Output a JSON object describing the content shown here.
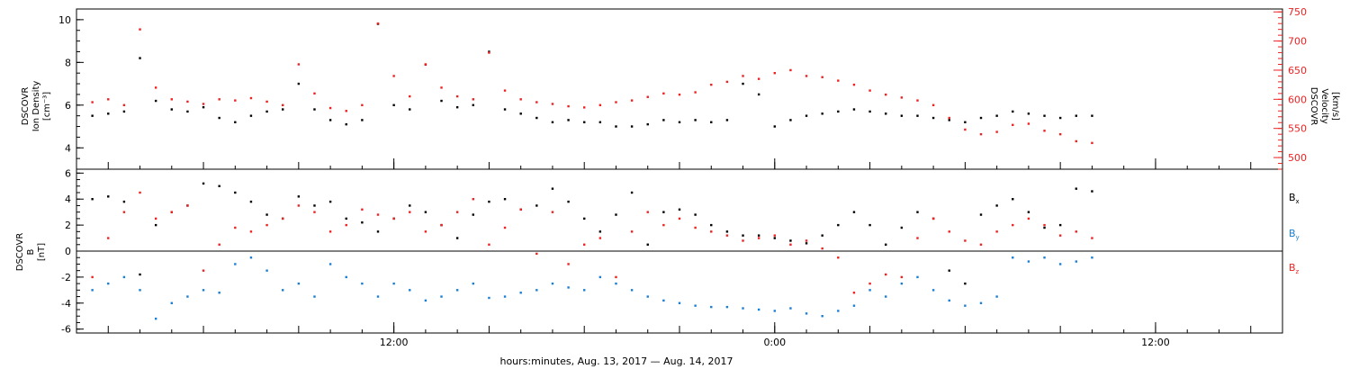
{
  "chart_data": [
    {
      "type": "scatter",
      "panel": "plasma",
      "ylabel_left": [
        "DSCOVR",
        "Ion Density",
        "[cm⁻³]"
      ],
      "ylabel_right": [
        "DSCOVR",
        "Velocity",
        "[km/s]"
      ],
      "ylim_left": [
        3,
        10.5
      ],
      "yticks_left": [
        "4",
        "6",
        "8",
        "10"
      ],
      "ylim_right": [
        480,
        755
      ],
      "yticks_right": [
        "500",
        "550",
        "600",
        "650",
        "700",
        "750"
      ],
      "colors": {
        "density": "#000000",
        "velocity": "#ee2222"
      },
      "series": [
        {
          "axis": "left",
          "color": "#000000",
          "x": [
            0.0,
            0.5,
            1.0,
            1.5,
            2.0,
            2.5,
            3.0,
            3.5,
            4.0,
            4.5,
            5.0,
            5.5,
            6.0,
            6.5,
            7.0,
            7.5,
            8.0,
            8.5,
            9.0,
            9.5,
            10.0,
            10.5,
            11.0,
            11.5,
            12.0,
            12.5,
            13.0,
            13.5,
            14.0,
            14.5,
            15.0,
            15.5,
            16.0,
            16.5,
            17.0,
            17.5,
            18.0,
            18.5,
            19.0,
            19.5,
            20.0,
            20.5,
            21.0,
            21.5,
            22.0,
            22.5,
            23.0,
            23.5,
            24.0,
            24.5,
            25.0,
            25.5,
            26.0,
            26.5,
            27.0,
            27.5,
            28.0,
            28.5,
            29.0,
            29.5,
            30.0,
            30.5,
            31.0,
            31.5
          ],
          "y": [
            5.5,
            5.6,
            5.7,
            8.2,
            6.2,
            5.8,
            5.7,
            5.9,
            5.4,
            5.2,
            5.5,
            5.7,
            5.8,
            7.0,
            5.8,
            5.3,
            5.1,
            5.3,
            9.8,
            6.0,
            5.8,
            7.9,
            6.2,
            5.9,
            6.0,
            8.5,
            5.8,
            5.6,
            5.4,
            5.2,
            5.3,
            5.2,
            5.2,
            5.0,
            5.0,
            5.1,
            5.3,
            5.2,
            5.3,
            5.2,
            5.3,
            7.0,
            6.5,
            5.0,
            5.3,
            5.5,
            5.6,
            5.7,
            5.8,
            5.7,
            5.6,
            5.5,
            5.5,
            5.4,
            5.3,
            5.2,
            5.4,
            5.5,
            5.7,
            5.6,
            5.5,
            5.4,
            5.5,
            5.5
          ]
        },
        {
          "axis": "right",
          "color": "#ee2222",
          "x": [
            0.0,
            0.5,
            1.0,
            1.5,
            2.0,
            2.5,
            3.0,
            3.5,
            4.0,
            4.5,
            5.0,
            5.5,
            6.0,
            6.5,
            7.0,
            7.5,
            8.0,
            8.5,
            9.0,
            9.5,
            10.0,
            10.5,
            11.0,
            11.5,
            12.0,
            12.5,
            13.0,
            13.5,
            14.0,
            14.5,
            15.0,
            15.5,
            16.0,
            16.5,
            17.0,
            17.5,
            18.0,
            18.5,
            19.0,
            19.5,
            20.0,
            20.5,
            21.0,
            21.5,
            22.0,
            22.5,
            23.0,
            23.5,
            24.0,
            24.5,
            25.0,
            25.5,
            26.0,
            26.5,
            27.0,
            27.5,
            28.0,
            28.5,
            29.0,
            29.5,
            30.0,
            30.5,
            31.0,
            31.5
          ],
          "y": [
            595,
            600,
            590,
            720,
            620,
            600,
            596,
            592,
            600,
            598,
            602,
            596,
            590,
            660,
            610,
            585,
            580,
            590,
            730,
            640,
            605,
            660,
            620,
            605,
            600,
            680,
            615,
            600,
            595,
            592,
            588,
            586,
            590,
            595,
            598,
            604,
            610,
            608,
            612,
            625,
            630,
            640,
            635,
            645,
            650,
            640,
            638,
            632,
            625,
            615,
            608,
            603,
            598,
            590,
            568,
            548,
            540,
            544,
            556,
            558,
            546,
            540,
            528,
            525
          ]
        }
      ]
    },
    {
      "type": "scatter",
      "panel": "magnetic-field",
      "ylabel": [
        "DSCOVR",
        "B",
        "[nT]"
      ],
      "ylim": [
        -6.3,
        6.3
      ],
      "yticks": [
        "-6",
        "-4",
        "-2",
        "0",
        "2",
        "4",
        "6"
      ],
      "legend": [
        {
          "label": "B",
          "sub": "x",
          "color": "#000000"
        },
        {
          "label": "B",
          "sub": "y",
          "color": "#1a7fd4"
        },
        {
          "label": "B",
          "sub": "z",
          "color": "#ee2222"
        }
      ],
      "series": [
        {
          "name": "Bx",
          "color": "#000000",
          "x": [
            0.0,
            0.5,
            1.0,
            1.5,
            2.0,
            2.5,
            3.0,
            3.5,
            4.0,
            4.5,
            5.0,
            5.5,
            6.0,
            6.5,
            7.0,
            7.5,
            8.0,
            8.5,
            9.0,
            9.5,
            10.0,
            10.5,
            11.0,
            11.5,
            12.0,
            12.5,
            13.0,
            13.5,
            14.0,
            14.5,
            15.0,
            15.5,
            16.0,
            16.5,
            17.0,
            17.5,
            18.0,
            18.5,
            19.0,
            19.5,
            20.0,
            20.5,
            21.0,
            21.5,
            22.0,
            22.5,
            23.0,
            23.5,
            24.0,
            24.5,
            25.0,
            25.5,
            26.0,
            26.5,
            27.0,
            27.5,
            28.0,
            28.5,
            29.0,
            29.5,
            30.0,
            30.5,
            31.0,
            31.5
          ],
          "y": [
            4.0,
            4.2,
            3.8,
            -1.8,
            2.0,
            3.0,
            3.5,
            5.2,
            5.0,
            4.5,
            3.8,
            2.8,
            2.5,
            4.2,
            3.5,
            3.8,
            2.5,
            2.2,
            1.5,
            2.5,
            3.5,
            3.0,
            2.0,
            1.0,
            2.8,
            3.8,
            4.0,
            3.2,
            3.5,
            4.8,
            3.8,
            2.5,
            1.5,
            2.8,
            4.5,
            0.5,
            3.0,
            3.2,
            2.8,
            2.0,
            1.5,
            1.2,
            1.2,
            1.0,
            0.8,
            0.6,
            1.2,
            2.0,
            3.0,
            2.0,
            0.5,
            1.8,
            3.0,
            2.5,
            -1.5,
            -2.5,
            2.8,
            3.5,
            4.0,
            3.0,
            1.8,
            2.0,
            4.8,
            4.6
          ]
        },
        {
          "name": "By",
          "color": "#1a7fd4",
          "x": [
            0.0,
            0.5,
            1.0,
            1.5,
            2.0,
            2.5,
            3.0,
            3.5,
            4.0,
            4.5,
            5.0,
            5.5,
            6.0,
            6.5,
            7.0,
            7.5,
            8.0,
            8.5,
            9.0,
            9.5,
            10.0,
            10.5,
            11.0,
            11.5,
            12.0,
            12.5,
            13.0,
            13.5,
            14.0,
            14.5,
            15.0,
            15.5,
            16.0,
            16.5,
            17.0,
            17.5,
            18.0,
            18.5,
            19.0,
            19.5,
            20.0,
            20.5,
            21.0,
            21.5,
            22.0,
            22.5,
            23.0,
            23.5,
            24.0,
            24.5,
            25.0,
            25.5,
            26.0,
            26.5,
            27.0,
            27.5,
            28.0,
            28.5,
            29.0,
            29.5,
            30.0,
            30.5,
            31.0,
            31.5
          ],
          "y": [
            -3.0,
            -2.5,
            -2.0,
            -3.0,
            -5.2,
            -4.0,
            -3.5,
            -3.0,
            -3.2,
            -1.0,
            -0.5,
            -1.5,
            -3.0,
            -2.5,
            -3.5,
            -1.0,
            -2.0,
            -2.5,
            -3.5,
            -2.5,
            -3.0,
            -3.8,
            -3.5,
            -3.0,
            -2.5,
            -3.6,
            -3.5,
            -3.2,
            -3.0,
            -2.5,
            -2.8,
            -3.0,
            -2.0,
            -2.5,
            -3.0,
            -3.5,
            -3.8,
            -4.0,
            -4.2,
            -4.3,
            -4.3,
            -4.4,
            -4.5,
            -4.6,
            -4.4,
            -4.8,
            -5.0,
            -4.6,
            -4.2,
            -3.0,
            -3.5,
            -2.5,
            -2.0,
            -3.0,
            -3.8,
            -4.2,
            -4.0,
            -3.5,
            -0.5,
            -0.8,
            -0.5,
            -1.0,
            -0.8,
            -0.5
          ]
        },
        {
          "name": "Bz",
          "color": "#ee2222",
          "x": [
            0.0,
            0.5,
            1.0,
            1.5,
            2.0,
            2.5,
            3.0,
            3.5,
            4.0,
            4.5,
            5.0,
            5.5,
            6.0,
            6.5,
            7.0,
            7.5,
            8.0,
            8.5,
            9.0,
            9.5,
            10.0,
            10.5,
            11.0,
            11.5,
            12.0,
            12.5,
            13.0,
            13.5,
            14.0,
            14.5,
            15.0,
            15.5,
            16.0,
            16.5,
            17.0,
            17.5,
            18.0,
            18.5,
            19.0,
            19.5,
            20.0,
            20.5,
            21.0,
            21.5,
            22.0,
            22.5,
            23.0,
            23.5,
            24.0,
            24.5,
            25.0,
            25.5,
            26.0,
            26.5,
            27.0,
            27.5,
            28.0,
            28.5,
            29.0,
            29.5,
            30.0,
            30.5,
            31.0,
            31.5
          ],
          "y": [
            -2.0,
            1.0,
            3.0,
            4.5,
            2.5,
            3.0,
            3.5,
            -1.5,
            0.5,
            1.8,
            1.5,
            2.0,
            2.5,
            3.5,
            3.0,
            1.5,
            2.0,
            3.2,
            2.8,
            2.5,
            3.0,
            1.5,
            2.0,
            3.0,
            4.0,
            0.5,
            1.8,
            3.2,
            -0.2,
            3.0,
            -1.0,
            0.5,
            1.0,
            -2.0,
            1.5,
            3.0,
            2.0,
            2.5,
            1.8,
            1.5,
            1.2,
            0.8,
            1.0,
            1.2,
            0.5,
            0.8,
            0.2,
            -0.5,
            -3.2,
            -2.5,
            -1.8,
            -2.0,
            1.0,
            2.5,
            1.5,
            0.8,
            0.5,
            1.5,
            2.0,
            2.5,
            2.0,
            1.2,
            1.5,
            1.0
          ]
        }
      ]
    }
  ],
  "x_axis": {
    "title": "hours:minutes, Aug. 13, 2017 — Aug. 14, 2017",
    "range_hours": [
      2,
      40
    ],
    "labeled_ticks": [
      {
        "hour": 12,
        "label": "12:00"
      },
      {
        "hour": 24,
        "label": "0:00"
      },
      {
        "hour": 36,
        "label": "12:00"
      }
    ]
  }
}
